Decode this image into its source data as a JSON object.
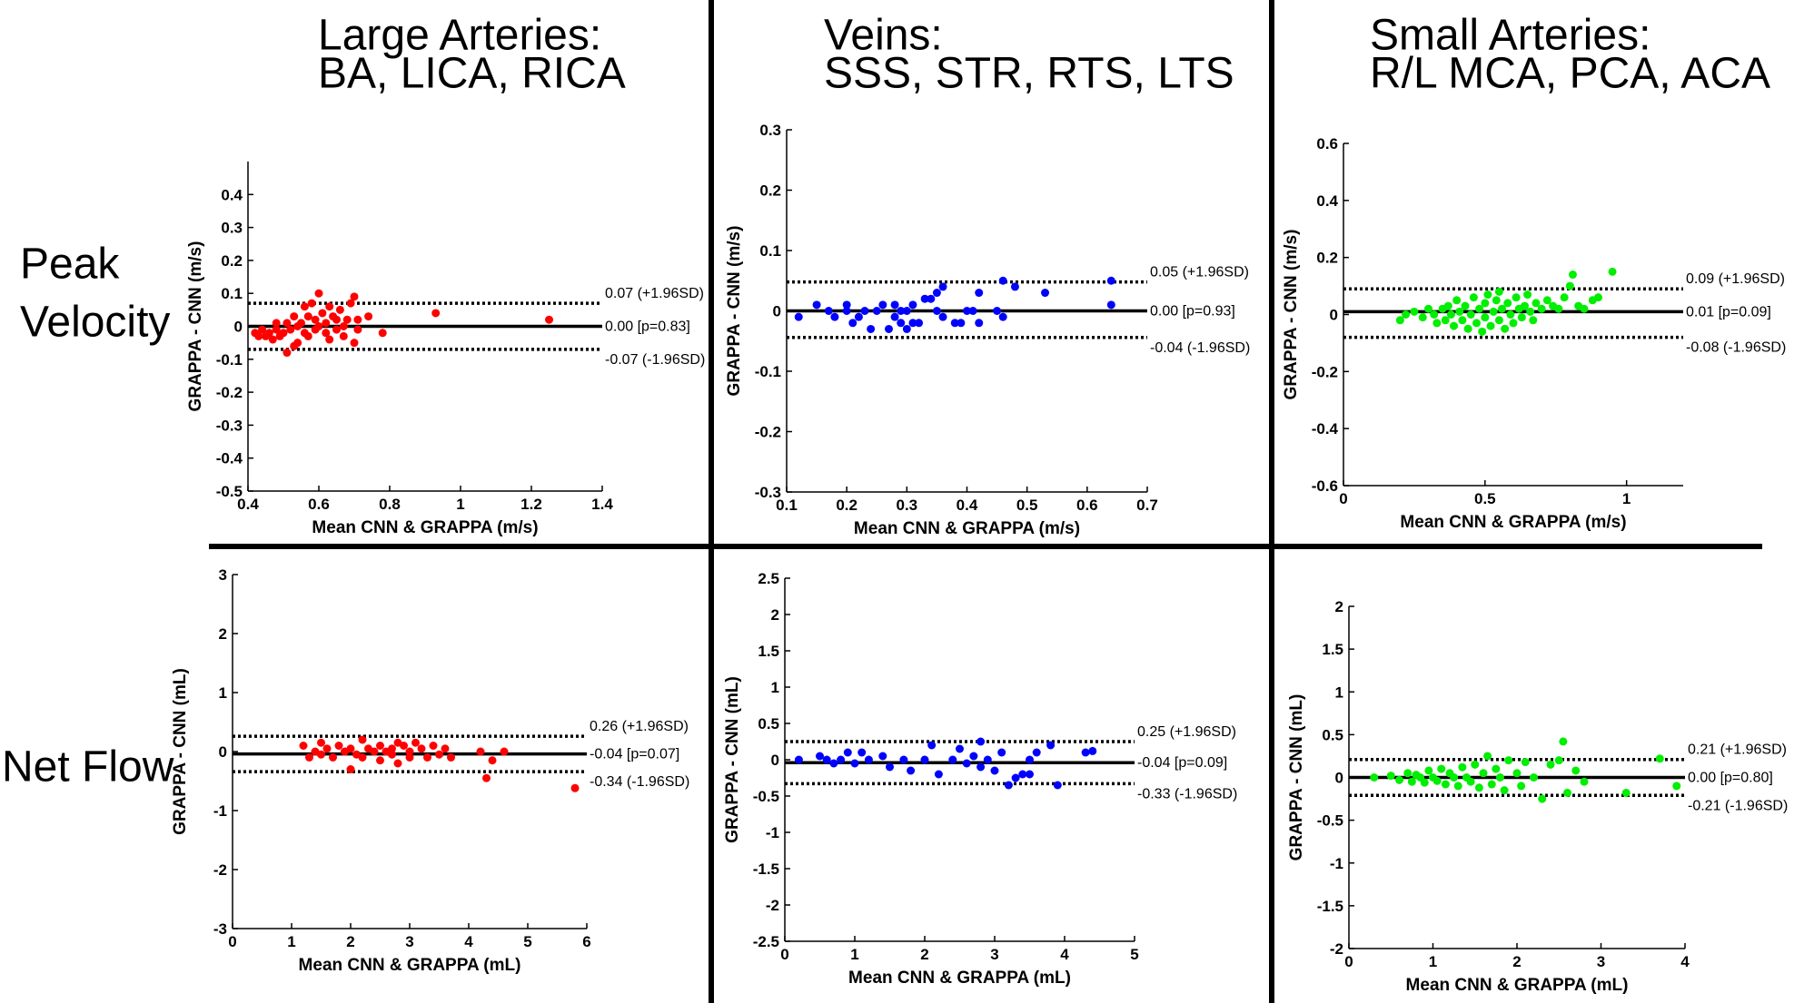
{
  "figure": {
    "column_titles": [
      [
        "Large Arteries:",
        "BA, LICA, RICA"
      ],
      [
        "Veins:",
        "SSS, STR, RTS, LTS"
      ],
      [
        "Small Arteries:",
        "R/L MCA, PCA, ACA"
      ]
    ],
    "row_titles": [
      [
        "Peak",
        "Velocity"
      ],
      [
        "Net Flow"
      ]
    ]
  },
  "chart_data": [
    {
      "type": "scatter",
      "panel": "large-arteries-peak-velocity",
      "xlabel": "Mean CNN & GRAPPA (m/s)",
      "ylabel": "GRAPPA - CNN (m/s)",
      "xlim": [
        0.4,
        1.4
      ],
      "ylim": [
        -0.5,
        0.5
      ],
      "xticks": [
        0.4,
        0.6,
        0.8,
        1,
        1.2,
        1.4
      ],
      "xtick_labels": [
        "0.4",
        "0.6",
        "0.8",
        "1",
        "1.2",
        "1.4"
      ],
      "yticks": [
        -0.5,
        -0.4,
        -0.3,
        -0.2,
        -0.1,
        0,
        0.1,
        0.2,
        0.3,
        0.4
      ],
      "ytick_labels": [
        "-0.5",
        "-0.4",
        "-0.3",
        "-0.2",
        "-0.1",
        "0",
        "0.1",
        "0.2",
        "0.3",
        "0.4"
      ],
      "color": "#ff0000",
      "lines": {
        "mean": 0.0,
        "upper": 0.07,
        "lower": -0.07
      },
      "line_labels": {
        "upper": "0.07 (+1.96SD)",
        "mean": "0.00 [p=0.83]",
        "lower": "-0.07 (-1.96SD)"
      },
      "points": [
        [
          0.42,
          -0.02
        ],
        [
          0.43,
          -0.03
        ],
        [
          0.44,
          -0.01
        ],
        [
          0.45,
          -0.03
        ],
        [
          0.46,
          -0.02
        ],
        [
          0.47,
          -0.04
        ],
        [
          0.48,
          -0.01
        ],
        [
          0.48,
          0.01
        ],
        [
          0.49,
          -0.03
        ],
        [
          0.5,
          -0.02
        ],
        [
          0.51,
          -0.08
        ],
        [
          0.51,
          0.01
        ],
        [
          0.52,
          -0.01
        ],
        [
          0.53,
          0.03
        ],
        [
          0.53,
          -0.06
        ],
        [
          0.54,
          -0.05
        ],
        [
          0.54,
          0.0
        ],
        [
          0.55,
          0.01
        ],
        [
          0.56,
          0.06
        ],
        [
          0.56,
          -0.02
        ],
        [
          0.57,
          0.03
        ],
        [
          0.57,
          -0.03
        ],
        [
          0.58,
          0.07
        ],
        [
          0.59,
          -0.01
        ],
        [
          0.59,
          0.02
        ],
        [
          0.6,
          0.1
        ],
        [
          0.6,
          0.0
        ],
        [
          0.61,
          0.04
        ],
        [
          0.62,
          -0.02
        ],
        [
          0.62,
          0.01
        ],
        [
          0.63,
          0.06
        ],
        [
          0.63,
          -0.04
        ],
        [
          0.64,
          0.03
        ],
        [
          0.65,
          -0.01
        ],
        [
          0.65,
          0.02
        ],
        [
          0.66,
          0.05
        ],
        [
          0.67,
          0.0
        ],
        [
          0.67,
          -0.03
        ],
        [
          0.68,
          0.02
        ],
        [
          0.69,
          0.07
        ],
        [
          0.7,
          -0.05
        ],
        [
          0.7,
          0.09
        ],
        [
          0.71,
          0.02
        ],
        [
          0.71,
          -0.01
        ],
        [
          0.74,
          0.03
        ],
        [
          0.78,
          -0.02
        ],
        [
          0.93,
          0.04
        ],
        [
          1.25,
          0.02
        ]
      ]
    },
    {
      "type": "scatter",
      "panel": "veins-peak-velocity",
      "xlabel": "Mean CNN & GRAPPA (m/s)",
      "ylabel": "GRAPPA - CNN (m/s)",
      "xlim": [
        0.1,
        0.7
      ],
      "ylim": [
        -0.3,
        0.3
      ],
      "xticks": [
        0.1,
        0.2,
        0.3,
        0.4,
        0.5,
        0.6,
        0.7
      ],
      "xtick_labels": [
        "0.1",
        "0.2",
        "0.3",
        "0.4",
        "0.5",
        "0.6",
        "0.7"
      ],
      "yticks": [
        -0.3,
        -0.2,
        -0.1,
        0,
        0.1,
        0.2,
        0.3
      ],
      "ytick_labels": [
        "-0.3",
        "-0.2",
        "-0.1",
        "0",
        "0.1",
        "0.2",
        "0.3"
      ],
      "color": "#0000ff",
      "lines": {
        "mean": 0.0,
        "upper": 0.048,
        "lower": -0.044
      },
      "line_labels": {
        "upper": "0.05 (+1.96SD)",
        "mean": "0.00 [p=0.93]",
        "lower": "-0.04 (-1.96SD)"
      },
      "points": [
        [
          0.12,
          -0.01
        ],
        [
          0.15,
          0.01
        ],
        [
          0.17,
          0.0
        ],
        [
          0.18,
          -0.01
        ],
        [
          0.2,
          0.0
        ],
        [
          0.2,
          0.01
        ],
        [
          0.21,
          -0.02
        ],
        [
          0.22,
          -0.01
        ],
        [
          0.23,
          0.0
        ],
        [
          0.24,
          -0.03
        ],
        [
          0.25,
          0.0
        ],
        [
          0.26,
          0.01
        ],
        [
          0.27,
          -0.03
        ],
        [
          0.28,
          0.01
        ],
        [
          0.28,
          -0.01
        ],
        [
          0.29,
          0.0
        ],
        [
          0.29,
          -0.02
        ],
        [
          0.3,
          -0.03
        ],
        [
          0.3,
          0.0
        ],
        [
          0.31,
          -0.02
        ],
        [
          0.31,
          0.01
        ],
        [
          0.32,
          -0.02
        ],
        [
          0.33,
          0.02
        ],
        [
          0.34,
          0.02
        ],
        [
          0.35,
          0.0
        ],
        [
          0.35,
          0.03
        ],
        [
          0.36,
          -0.01
        ],
        [
          0.36,
          0.04
        ],
        [
          0.38,
          -0.02
        ],
        [
          0.39,
          -0.02
        ],
        [
          0.4,
          0.0
        ],
        [
          0.41,
          0.0
        ],
        [
          0.42,
          0.03
        ],
        [
          0.42,
          -0.02
        ],
        [
          0.45,
          0.0
        ],
        [
          0.46,
          -0.01
        ],
        [
          0.46,
          0.05
        ],
        [
          0.48,
          0.04
        ],
        [
          0.53,
          0.03
        ],
        [
          0.64,
          0.01
        ],
        [
          0.64,
          0.05
        ]
      ]
    },
    {
      "type": "scatter",
      "panel": "small-arteries-peak-velocity",
      "xlabel": "Mean CNN & GRAPPA (m/s)",
      "ylabel": "GRAPPA - CNN (m/s)",
      "xlim": [
        0,
        1.2
      ],
      "ylim": [
        -0.6,
        0.6
      ],
      "xticks": [
        0,
        0.5,
        1
      ],
      "xtick_labels": [
        "0",
        "0.5",
        "1"
      ],
      "yticks": [
        -0.6,
        -0.4,
        -0.2,
        0,
        0.2,
        0.4,
        0.6
      ],
      "ytick_labels": [
        "-0.6",
        "-0.4",
        "-0.2",
        "0",
        "0.2",
        "0.4",
        "0.6"
      ],
      "color": "#00ee00",
      "lines": {
        "mean": 0.01,
        "upper": 0.09,
        "lower": -0.08
      },
      "line_labels": {
        "upper": "0.09 (+1.96SD)",
        "mean": "0.01 [p=0.09]",
        "lower": "-0.08 (-1.96SD)"
      },
      "points": [
        [
          0.2,
          -0.02
        ],
        [
          0.22,
          0.0
        ],
        [
          0.25,
          0.01
        ],
        [
          0.28,
          -0.01
        ],
        [
          0.3,
          0.02
        ],
        [
          0.32,
          0.0
        ],
        [
          0.33,
          -0.03
        ],
        [
          0.35,
          0.02
        ],
        [
          0.36,
          -0.02
        ],
        [
          0.37,
          0.03
        ],
        [
          0.38,
          0.0
        ],
        [
          0.39,
          -0.04
        ],
        [
          0.4,
          0.05
        ],
        [
          0.41,
          0.01
        ],
        [
          0.42,
          -0.02
        ],
        [
          0.43,
          0.03
        ],
        [
          0.44,
          -0.05
        ],
        [
          0.45,
          0.0
        ],
        [
          0.46,
          0.06
        ],
        [
          0.47,
          -0.03
        ],
        [
          0.48,
          0.02
        ],
        [
          0.49,
          -0.06
        ],
        [
          0.5,
          0.04
        ],
        [
          0.5,
          -0.01
        ],
        [
          0.51,
          0.07
        ],
        [
          0.52,
          -0.04
        ],
        [
          0.53,
          0.01
        ],
        [
          0.54,
          0.05
        ],
        [
          0.55,
          -0.02
        ],
        [
          0.55,
          0.08
        ],
        [
          0.56,
          0.02
        ],
        [
          0.57,
          -0.05
        ],
        [
          0.58,
          0.04
        ],
        [
          0.59,
          0.0
        ],
        [
          0.6,
          -0.03
        ],
        [
          0.61,
          0.06
        ],
        [
          0.62,
          0.02
        ],
        [
          0.63,
          -0.01
        ],
        [
          0.64,
          0.03
        ],
        [
          0.65,
          0.07
        ],
        [
          0.66,
          0.01
        ],
        [
          0.67,
          -0.02
        ],
        [
          0.68,
          0.04
        ],
        [
          0.7,
          0.02
        ],
        [
          0.72,
          0.05
        ],
        [
          0.74,
          0.03
        ],
        [
          0.76,
          0.02
        ],
        [
          0.78,
          0.06
        ],
        [
          0.8,
          0.1
        ],
        [
          0.81,
          0.14
        ],
        [
          0.83,
          0.03
        ],
        [
          0.85,
          0.02
        ],
        [
          0.88,
          0.05
        ],
        [
          0.9,
          0.06
        ],
        [
          0.95,
          0.15
        ]
      ]
    },
    {
      "type": "scatter",
      "panel": "large-arteries-net-flow",
      "xlabel": "Mean CNN & GRAPPA (mL)",
      "ylabel": "GRAPPA - CNN (mL)",
      "xlim": [
        0,
        6
      ],
      "ylim": [
        -3,
        3
      ],
      "xticks": [
        0,
        1,
        2,
        3,
        4,
        5,
        6
      ],
      "xtick_labels": [
        "0",
        "1",
        "2",
        "3",
        "4",
        "5",
        "6"
      ],
      "yticks": [
        -3,
        -2,
        -1,
        0,
        1,
        2,
        3
      ],
      "ytick_labels": [
        "-3",
        "-2",
        "-1",
        "0",
        "1",
        "2",
        "3"
      ],
      "color": "#ff0000",
      "lines": {
        "mean": -0.04,
        "upper": 0.26,
        "lower": -0.34
      },
      "line_labels": {
        "upper": "0.26 (+1.96SD)",
        "mean": "-0.04 [p=0.07]",
        "lower": "-0.34 (-1.96SD)"
      },
      "points": [
        [
          1.2,
          0.1
        ],
        [
          1.3,
          -0.1
        ],
        [
          1.4,
          0.0
        ],
        [
          1.5,
          -0.05
        ],
        [
          1.5,
          0.15
        ],
        [
          1.6,
          0.05
        ],
        [
          1.7,
          -0.1
        ],
        [
          1.8,
          0.1
        ],
        [
          1.9,
          0.0
        ],
        [
          2.0,
          -0.3
        ],
        [
          2.0,
          0.05
        ],
        [
          2.1,
          -0.05
        ],
        [
          2.2,
          0.2
        ],
        [
          2.2,
          -0.1
        ],
        [
          2.3,
          0.05
        ],
        [
          2.4,
          0.0
        ],
        [
          2.5,
          -0.15
        ],
        [
          2.5,
          0.1
        ],
        [
          2.6,
          0.0
        ],
        [
          2.7,
          0.05
        ],
        [
          2.7,
          -0.05
        ],
        [
          2.8,
          0.15
        ],
        [
          2.8,
          -0.2
        ],
        [
          2.9,
          0.1
        ],
        [
          3.0,
          0.0
        ],
        [
          3.0,
          -0.1
        ],
        [
          3.1,
          0.15
        ],
        [
          3.2,
          0.05
        ],
        [
          3.3,
          -0.1
        ],
        [
          3.4,
          0.1
        ],
        [
          3.5,
          -0.05
        ],
        [
          3.6,
          0.05
        ],
        [
          3.7,
          -0.1
        ],
        [
          4.2,
          0.0
        ],
        [
          4.3,
          -0.45
        ],
        [
          4.4,
          -0.15
        ],
        [
          4.6,
          0.0
        ],
        [
          5.8,
          -0.62
        ]
      ]
    },
    {
      "type": "scatter",
      "panel": "veins-net-flow",
      "xlabel": "Mean CNN & GRAPPA (mL)",
      "ylabel": "GRAPPA - CNN (mL)",
      "xlim": [
        0,
        5
      ],
      "ylim": [
        -2.5,
        2.5
      ],
      "xticks": [
        0,
        1,
        2,
        3,
        4,
        5
      ],
      "xtick_labels": [
        "0",
        "1",
        "2",
        "3",
        "4",
        "5"
      ],
      "yticks": [
        -2.5,
        -2,
        -1.5,
        -1,
        -0.5,
        0,
        0.5,
        1,
        1.5,
        2,
        2.5
      ],
      "ytick_labels": [
        "-2.5",
        "-2",
        "-1.5",
        "-1",
        "-0.5",
        "0",
        "0.5",
        "1",
        "1.5",
        "2",
        "2.5"
      ],
      "color": "#0000ff",
      "lines": {
        "mean": -0.04,
        "upper": 0.25,
        "lower": -0.33
      },
      "line_labels": {
        "upper": "0.25 (+1.96SD)",
        "mean": "-0.04 [p=0.09]",
        "lower": "-0.33 (-1.96SD)"
      },
      "points": [
        [
          0.2,
          0.0
        ],
        [
          0.5,
          0.05
        ],
        [
          0.6,
          0.0
        ],
        [
          0.7,
          -0.05
        ],
        [
          0.8,
          0.0
        ],
        [
          0.9,
          0.1
        ],
        [
          1.0,
          -0.05
        ],
        [
          1.1,
          0.1
        ],
        [
          1.2,
          0.0
        ],
        [
          1.4,
          0.05
        ],
        [
          1.5,
          -0.1
        ],
        [
          1.7,
          0.0
        ],
        [
          1.8,
          -0.15
        ],
        [
          2.0,
          0.0
        ],
        [
          2.1,
          0.2
        ],
        [
          2.2,
          -0.2
        ],
        [
          2.4,
          0.0
        ],
        [
          2.5,
          0.15
        ],
        [
          2.6,
          -0.05
        ],
        [
          2.7,
          0.05
        ],
        [
          2.8,
          0.25
        ],
        [
          2.8,
          -0.1
        ],
        [
          2.9,
          0.0
        ],
        [
          3.0,
          -0.15
        ],
        [
          3.1,
          0.1
        ],
        [
          3.2,
          -0.35
        ],
        [
          3.3,
          -0.25
        ],
        [
          3.4,
          -0.2
        ],
        [
          3.5,
          0.0
        ],
        [
          3.5,
          -0.2
        ],
        [
          3.6,
          0.1
        ],
        [
          3.8,
          0.2
        ],
        [
          3.9,
          -0.35
        ],
        [
          4.3,
          0.1
        ],
        [
          4.4,
          0.12
        ]
      ]
    },
    {
      "type": "scatter",
      "panel": "small-arteries-net-flow",
      "xlabel": "Mean CNN & GRAPPA (mL)",
      "ylabel": "GRAPPA - CNN (mL)",
      "xlim": [
        0,
        4
      ],
      "ylim": [
        -2,
        2
      ],
      "xticks": [
        0,
        1,
        2,
        3,
        4
      ],
      "xtick_labels": [
        "0",
        "1",
        "2",
        "3",
        "4"
      ],
      "yticks": [
        -2,
        -1.5,
        -1,
        -0.5,
        0,
        0.5,
        1,
        1.5,
        2
      ],
      "ytick_labels": [
        "-2",
        "-1.5",
        "-1",
        "-0.5",
        "0",
        "0.5",
        "1",
        "1.5",
        "2"
      ],
      "color": "#00ee00",
      "lines": {
        "mean": 0.0,
        "upper": 0.21,
        "lower": -0.21
      },
      "line_labels": {
        "upper": "0.21 (+1.96SD)",
        "mean": "0.00 [p=0.80]",
        "lower": "-0.21 (-1.96SD)"
      },
      "points": [
        [
          0.3,
          0.0
        ],
        [
          0.5,
          0.02
        ],
        [
          0.6,
          -0.03
        ],
        [
          0.7,
          0.05
        ],
        [
          0.75,
          -0.05
        ],
        [
          0.8,
          0.03
        ],
        [
          0.85,
          0.0
        ],
        [
          0.9,
          -0.06
        ],
        [
          0.95,
          0.08
        ],
        [
          1.0,
          0.0
        ],
        [
          1.05,
          -0.04
        ],
        [
          1.1,
          0.1
        ],
        [
          1.15,
          -0.08
        ],
        [
          1.2,
          0.05
        ],
        [
          1.25,
          0.0
        ],
        [
          1.3,
          -0.1
        ],
        [
          1.35,
          0.12
        ],
        [
          1.4,
          0.0
        ],
        [
          1.45,
          -0.05
        ],
        [
          1.5,
          0.15
        ],
        [
          1.55,
          -0.12
        ],
        [
          1.6,
          0.05
        ],
        [
          1.65,
          0.25
        ],
        [
          1.7,
          -0.08
        ],
        [
          1.75,
          0.1
        ],
        [
          1.8,
          0.0
        ],
        [
          1.85,
          -0.15
        ],
        [
          1.9,
          0.2
        ],
        [
          2.0,
          0.05
        ],
        [
          2.05,
          -0.1
        ],
        [
          2.1,
          0.18
        ],
        [
          2.2,
          0.0
        ],
        [
          2.3,
          -0.25
        ],
        [
          2.4,
          0.15
        ],
        [
          2.5,
          0.2
        ],
        [
          2.55,
          0.42
        ],
        [
          2.6,
          -0.18
        ],
        [
          2.7,
          0.08
        ],
        [
          2.8,
          -0.05
        ],
        [
          3.3,
          -0.18
        ],
        [
          3.7,
          0.22
        ],
        [
          3.9,
          -0.1
        ]
      ]
    }
  ]
}
